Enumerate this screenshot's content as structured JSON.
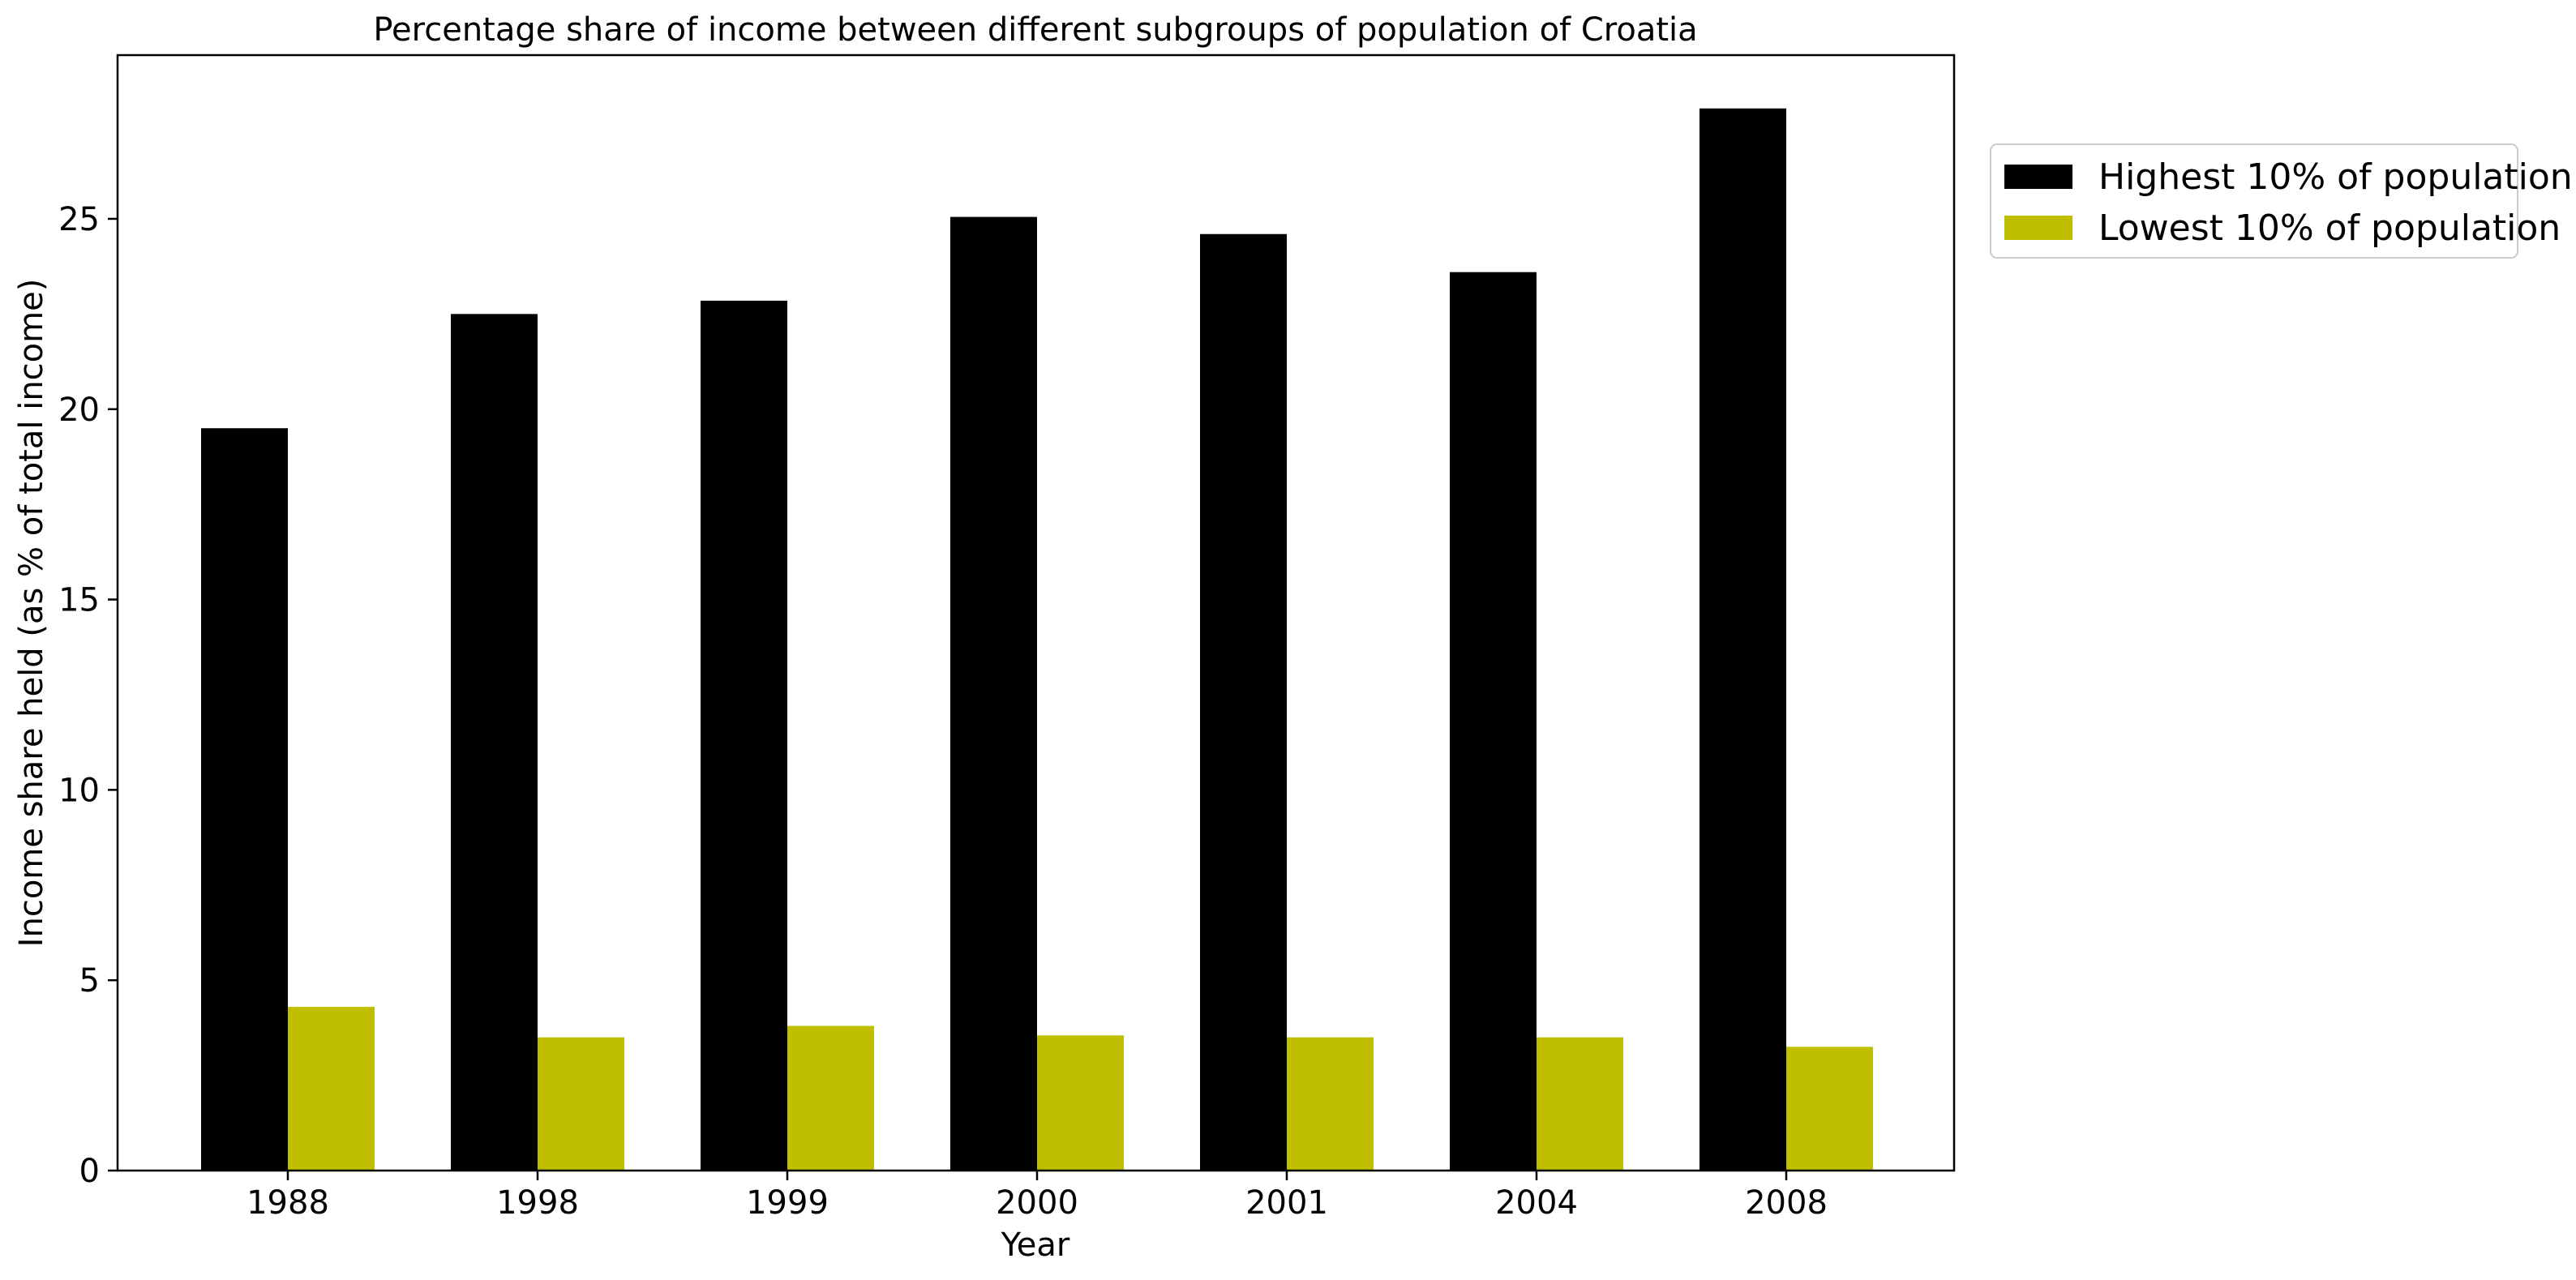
{
  "chart_data": {
    "type": "bar",
    "title": "Percentage share of income between different subgroups of population of Croatia",
    "xlabel": "Year",
    "ylabel": "Income share held (as % of total income)",
    "categories": [
      "1988",
      "1998",
      "1999",
      "2000",
      "2001",
      "2004",
      "2008"
    ],
    "series": [
      {
        "name": "Highest 10% of population",
        "color": "#000000",
        "values": [
          19.5,
          22.5,
          22.85,
          25.05,
          24.6,
          23.6,
          27.9
        ]
      },
      {
        "name": "Lowest 10% of population",
        "color": "#bfbf00",
        "values": [
          4.3,
          3.5,
          3.8,
          3.55,
          3.5,
          3.5,
          3.25
        ]
      }
    ],
    "ylim": [
      0,
      29.3
    ],
    "yticks": [
      0,
      5,
      10,
      15,
      20,
      25
    ],
    "grid": false,
    "legend_position": "outside-right-top"
  }
}
